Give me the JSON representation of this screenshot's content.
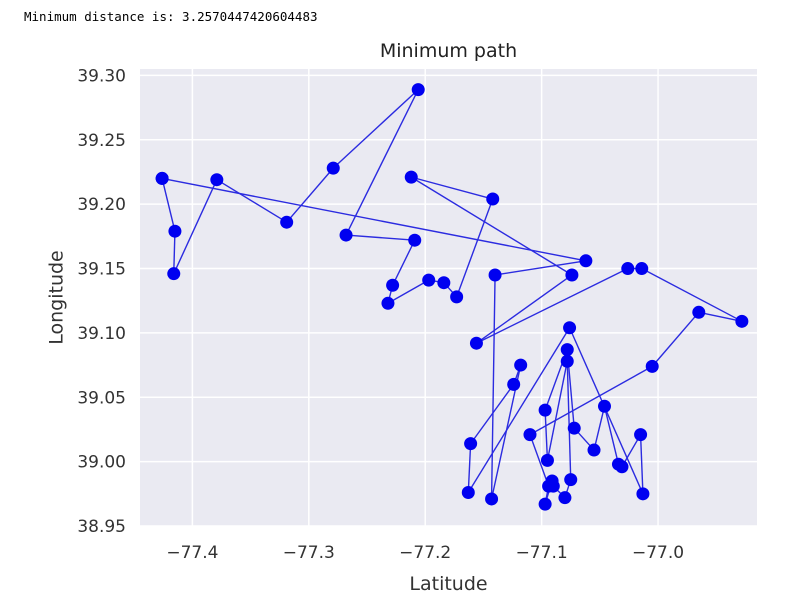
{
  "output_text": "Minimum distance is: 3.2570447420604483",
  "chart_data": {
    "type": "line",
    "title": "Minimum path",
    "xlabel": "Latitude",
    "ylabel": "Longitude",
    "xlim": [
      -77.445,
      -76.915
    ],
    "ylim": [
      38.95,
      39.305
    ],
    "xticks": [
      -77.4,
      -77.3,
      -77.2,
      -77.1,
      -77.0
    ],
    "xtick_labels": [
      "−77.4",
      "−77.3",
      "−77.2",
      "−77.1",
      "−77.0"
    ],
    "yticks": [
      38.95,
      39.0,
      39.05,
      39.1,
      39.15,
      39.2,
      39.25,
      39.3
    ],
    "ytick_labels": [
      "38.95",
      "39.00",
      "39.05",
      "39.10",
      "39.15",
      "39.20",
      "39.25",
      "39.30"
    ],
    "grid": true,
    "colors": {
      "line": "#2b2be0",
      "marker": "#0000f0",
      "background": "#eaeaf2",
      "grid": "#ffffff"
    },
    "series": [
      {
        "x": [
          -77.426,
          -77.415,
          -77.416,
          -77.379,
          -77.319,
          -77.279,
          -77.206,
          -77.268,
          -77.209,
          -77.228,
          -77.232,
          -77.197,
          -77.184,
          -77.173,
          -77.142,
          -77.212,
          -77.074,
          -77.156,
          -77.026,
          -77.014,
          -76.928,
          -76.965,
          -77.005,
          -77.11,
          -77.094,
          -77.097,
          -77.091,
          -77.09,
          -77.08,
          -77.075,
          -77.078,
          -77.095,
          -77.097,
          -77.078,
          -77.072,
          -77.055,
          -77.046,
          -77.034,
          -77.031,
          -77.015,
          -77.013,
          -77.076,
          -77.163,
          -77.161,
          -77.124,
          -77.118,
          -77.143,
          -77.14,
          -77.062,
          -77.426
        ],
        "y": [
          39.22,
          39.179,
          39.146,
          39.219,
          39.186,
          39.228,
          39.289,
          39.176,
          39.172,
          39.137,
          39.123,
          39.141,
          39.139,
          39.128,
          39.204,
          39.221,
          39.145,
          39.092,
          39.15,
          39.15,
          39.109,
          39.116,
          39.074,
          39.021,
          38.981,
          38.967,
          38.985,
          38.981,
          38.972,
          38.986,
          39.078,
          39.001,
          39.04,
          39.087,
          39.026,
          39.009,
          39.043,
          38.998,
          38.996,
          39.021,
          38.975,
          39.104,
          38.976,
          39.014,
          39.06,
          39.075,
          38.971,
          39.145,
          39.156,
          39.22
        ]
      }
    ]
  }
}
